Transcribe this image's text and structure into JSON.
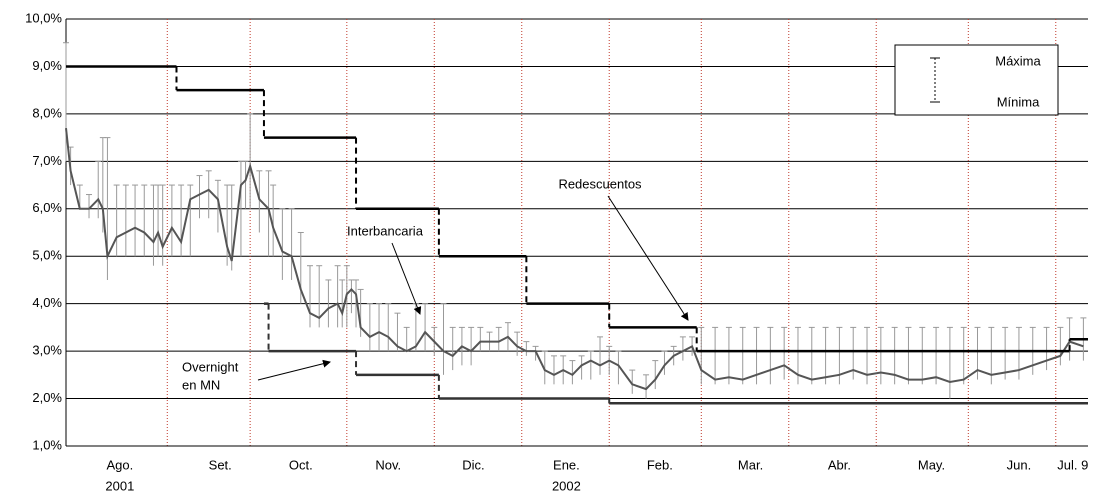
{
  "chart_data": {
    "type": "line",
    "xlim": [
      0,
      222
    ],
    "ylim": [
      1,
      10
    ],
    "yticks": [
      {
        "value": 1,
        "label": "1,0%"
      },
      {
        "value": 2,
        "label": "2,0%"
      },
      {
        "value": 3,
        "label": "3,0%"
      },
      {
        "value": 4,
        "label": "4,0%"
      },
      {
        "value": 5,
        "label": "5,0%"
      },
      {
        "value": 6,
        "label": "6,0%"
      },
      {
        "value": 7,
        "label": "7,0%"
      },
      {
        "value": 8,
        "label": "8,0%"
      },
      {
        "value": 9,
        "label": "9,0%"
      },
      {
        "value": 10,
        "label": "10,0%"
      }
    ],
    "xticks": [
      {
        "value": 11.7,
        "label": "Ago."
      },
      {
        "value": 33.5,
        "label": "Set."
      },
      {
        "value": 51,
        "label": "Oct."
      },
      {
        "value": 70,
        "label": "Nov."
      },
      {
        "value": 88.5,
        "label": "Dic."
      },
      {
        "value": 108.7,
        "label": "Ene."
      },
      {
        "value": 129,
        "label": "Feb."
      },
      {
        "value": 148.7,
        "label": "Mar."
      },
      {
        "value": 168,
        "label": "Abr."
      },
      {
        "value": 188,
        "label": "May."
      },
      {
        "value": 207,
        "label": "Jun."
      },
      {
        "value": 218.7,
        "label": "Jul. 9"
      }
    ],
    "year_labels": [
      {
        "value": 11.7,
        "label": "2001"
      },
      {
        "value": 108.7,
        "label": "2002"
      }
    ],
    "month_boundaries": [
      22,
      40,
      61,
      80,
      99,
      118,
      138,
      157,
      176,
      196,
      215
    ],
    "grid": true,
    "series": [
      {
        "name": "Interbancaria",
        "color": "#555555",
        "errorbar_color": "#999999",
        "x": [
          0,
          1,
          3,
          5,
          7,
          8,
          9,
          11,
          13,
          15,
          17,
          19,
          20,
          21,
          23,
          25,
          27,
          29,
          31,
          33,
          35,
          36,
          38,
          39,
          40,
          42,
          44,
          45,
          47,
          49,
          51,
          53,
          55,
          57,
          59,
          60,
          61,
          62,
          63,
          64,
          66,
          68,
          70,
          72,
          74,
          76,
          78,
          80,
          82,
          84,
          86,
          88,
          90,
          92,
          94,
          96,
          98,
          100,
          102,
          104,
          106,
          108,
          110,
          112,
          114,
          116,
          118,
          120,
          123,
          126,
          128,
          130,
          132,
          134,
          136,
          138,
          141,
          144,
          147,
          150,
          153,
          156,
          159,
          162,
          165,
          168,
          171,
          174,
          177,
          180,
          183,
          186,
          189,
          192,
          195,
          198,
          201,
          204,
          207,
          210,
          213,
          216,
          218,
          221
        ],
        "values": [
          7.7,
          6.8,
          6.0,
          6.0,
          6.2,
          6.0,
          5.0,
          5.4,
          5.5,
          5.6,
          5.5,
          5.3,
          5.5,
          5.2,
          5.6,
          5.3,
          6.2,
          6.3,
          6.4,
          6.2,
          5.2,
          4.9,
          6.5,
          6.6,
          6.9,
          6.2,
          6.0,
          5.6,
          5.1,
          5.0,
          4.3,
          3.8,
          3.7,
          3.9,
          4.0,
          3.8,
          4.2,
          4.3,
          4.2,
          3.5,
          3.3,
          3.4,
          3.3,
          3.1,
          3.0,
          3.1,
          3.4,
          3.2,
          3.0,
          2.9,
          3.1,
          3.0,
          3.2,
          3.2,
          3.2,
          3.3,
          3.1,
          3.0,
          3.0,
          2.6,
          2.5,
          2.6,
          2.5,
          2.7,
          2.8,
          2.7,
          2.8,
          2.7,
          2.3,
          2.2,
          2.4,
          2.7,
          2.9,
          3.0,
          3.1,
          2.6,
          2.4,
          2.45,
          2.4,
          2.5,
          2.6,
          2.7,
          2.5,
          2.4,
          2.45,
          2.5,
          2.6,
          2.5,
          2.55,
          2.5,
          2.4,
          2.4,
          2.45,
          2.35,
          2.4,
          2.6,
          2.5,
          2.55,
          2.6,
          2.7,
          2.8,
          2.9,
          3.2,
          3.1
        ],
        "high": [
          9.5,
          7.3,
          6.5,
          6.3,
          7.0,
          7.5,
          7.5,
          6.5,
          6.5,
          6.5,
          6.5,
          6.5,
          6.5,
          6.5,
          6.5,
          6.5,
          6.5,
          6.7,
          6.8,
          6.6,
          6.5,
          6.5,
          7.0,
          7.0,
          8.0,
          6.8,
          6.8,
          6.5,
          6.0,
          6.0,
          5.5,
          4.8,
          4.8,
          4.5,
          4.8,
          4.5,
          4.8,
          4.5,
          4.5,
          4.3,
          4.0,
          4.0,
          4.0,
          3.8,
          3.5,
          4.0,
          4.0,
          3.5,
          4.0,
          3.5,
          3.5,
          3.5,
          3.5,
          3.4,
          3.5,
          3.6,
          3.4,
          3.2,
          3.1,
          3.0,
          2.9,
          2.9,
          2.8,
          2.9,
          3.0,
          3.3,
          3.1,
          3.0,
          2.6,
          2.5,
          2.8,
          3.0,
          3.1,
          3.3,
          3.3,
          3.5,
          3.5,
          3.5,
          3.5,
          3.5,
          3.5,
          3.5,
          3.5,
          3.5,
          3.5,
          3.5,
          3.5,
          3.5,
          3.5,
          3.5,
          3.5,
          3.5,
          3.5,
          3.5,
          3.5,
          3.5,
          3.5,
          3.5,
          3.5,
          3.5,
          3.5,
          3.5,
          3.7,
          3.7
        ],
        "low": [
          7.0,
          6.5,
          6.0,
          5.8,
          5.8,
          5.5,
          4.5,
          5.0,
          5.0,
          5.0,
          5.0,
          4.8,
          5.0,
          4.8,
          5.0,
          5.0,
          5.0,
          5.8,
          5.8,
          5.5,
          4.8,
          4.7,
          5.0,
          6.0,
          6.0,
          5.5,
          5.0,
          5.0,
          4.5,
          4.5,
          4.0,
          3.5,
          3.5,
          3.5,
          3.5,
          3.5,
          3.5,
          3.8,
          3.5,
          3.3,
          3.0,
          3.0,
          3.0,
          3.0,
          3.0,
          3.0,
          3.0,
          2.9,
          2.5,
          2.6,
          2.7,
          2.7,
          3.0,
          3.0,
          3.0,
          3.0,
          2.9,
          2.9,
          2.8,
          2.3,
          2.3,
          2.3,
          2.3,
          2.4,
          2.4,
          2.5,
          2.5,
          2.3,
          2.1,
          2.0,
          2.2,
          2.5,
          2.7,
          2.8,
          2.9,
          2.3,
          2.3,
          2.3,
          2.3,
          2.3,
          2.3,
          2.4,
          2.3,
          2.3,
          2.3,
          2.3,
          2.4,
          2.3,
          2.3,
          2.3,
          2.3,
          2.3,
          2.3,
          2.0,
          2.3,
          2.4,
          2.3,
          2.4,
          2.4,
          2.5,
          2.6,
          2.7,
          2.8,
          2.8
        ]
      },
      {
        "name": "Redescuentos",
        "color": "#000000",
        "step": true,
        "x": [
          0,
          24,
          43,
          63,
          81,
          100,
          118,
          137,
          218
        ],
        "values": [
          9,
          8.5,
          7.5,
          6,
          5,
          4,
          3.5,
          3,
          3.25
        ]
      },
      {
        "name": [
          "Overnight",
          "en MN"
        ],
        "color": "#333333",
        "step": true,
        "x": [
          43,
          44,
          63,
          81,
          118
        ],
        "values": [
          4,
          3,
          2.5,
          2,
          1.9
        ]
      }
    ],
    "legend": {
      "max_label": "Máxima",
      "min_label": "Mínima",
      "position": "upper right"
    }
  }
}
